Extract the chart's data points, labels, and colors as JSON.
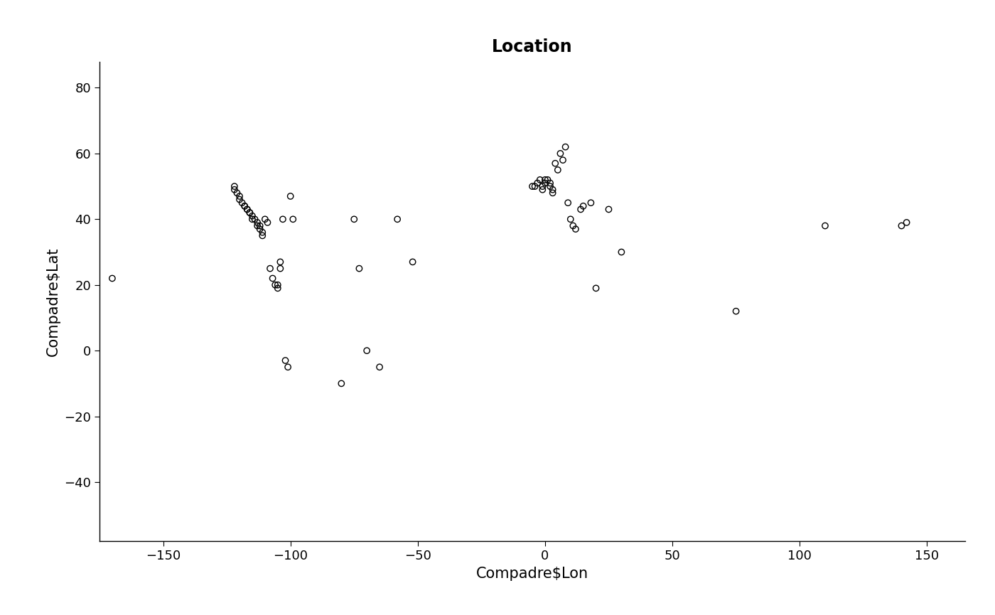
{
  "title": "Location",
  "xlabel": "Compadre$Lon",
  "ylabel": "Compadre$Lat",
  "xlim": [
    -175,
    165
  ],
  "ylim": [
    -58,
    88
  ],
  "xticks": [
    -150,
    -100,
    -50,
    0,
    50,
    100,
    150
  ],
  "yticks": [
    -40,
    -20,
    0,
    20,
    40,
    60,
    80
  ],
  "lon": [
    -170,
    -122,
    -122,
    -121,
    -120,
    -120,
    -119,
    -118,
    -118,
    -117,
    -117,
    -116,
    -116,
    -115,
    -115,
    -114,
    -113,
    -113,
    -112,
    -112,
    -111,
    -111,
    -110,
    -109,
    -108,
    -107,
    -106,
    -105,
    -105,
    -104,
    -104,
    -103,
    -102,
    -101,
    -100,
    -99,
    -80,
    -75,
    -73,
    -70,
    -65,
    -58,
    -52,
    -5,
    -4,
    -3,
    -2,
    -1,
    -1,
    0,
    0,
    1,
    2,
    2,
    3,
    3,
    4,
    5,
    6,
    7,
    8,
    9,
    10,
    11,
    12,
    14,
    15,
    18,
    20,
    25,
    30,
    75,
    110,
    140,
    142
  ],
  "lat": [
    22,
    50,
    49,
    48,
    47,
    46,
    45,
    44,
    44,
    43,
    43,
    42,
    42,
    41,
    40,
    40,
    39,
    38,
    38,
    37,
    36,
    35,
    40,
    39,
    25,
    22,
    20,
    20,
    19,
    25,
    27,
    40,
    -3,
    -5,
    47,
    40,
    -10,
    40,
    25,
    0,
    -5,
    40,
    27,
    50,
    50,
    51,
    52,
    49,
    50,
    51,
    52,
    52,
    51,
    50,
    49,
    48,
    57,
    55,
    60,
    58,
    62,
    45,
    40,
    38,
    37,
    43,
    44,
    45,
    19,
    43,
    30,
    12,
    38,
    38,
    39
  ],
  "marker_size": 6,
  "marker_color": "none",
  "marker_edge_color": "black",
  "marker_edge_width": 1.0,
  "background_color": "white",
  "title_fontsize": 17,
  "label_fontsize": 15,
  "tick_fontsize": 13
}
